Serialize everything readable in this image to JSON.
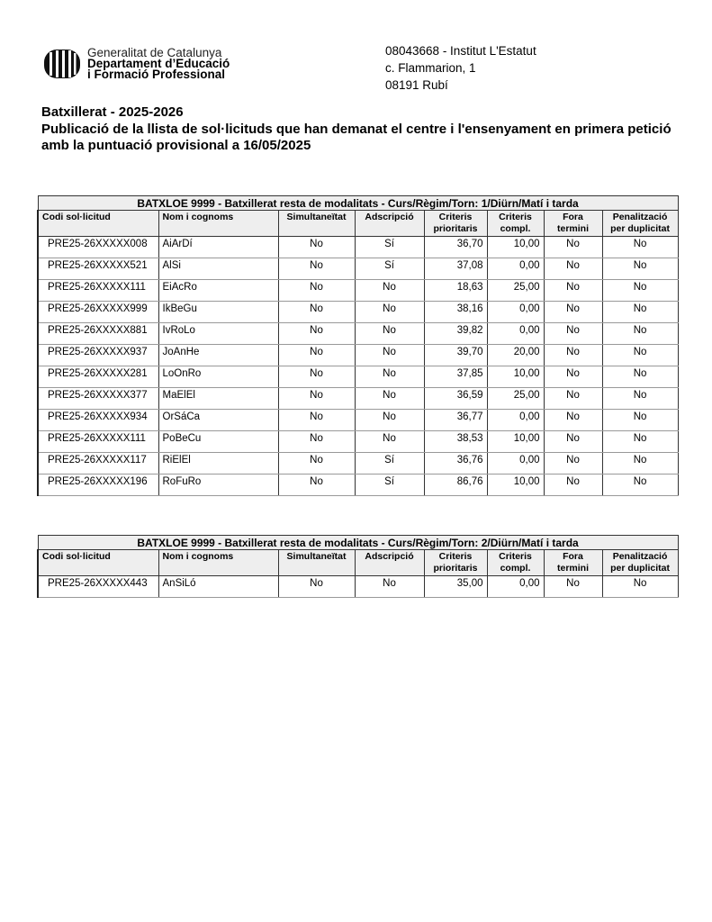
{
  "header": {
    "org_line1": "Generalitat de Catalunya",
    "org_line2": "Departament d’Educació",
    "org_line3": "i Formació Professional",
    "address": [
      "08043668 - Institut L'Estatut",
      "c. Flammarion, 1",
      "08191 Rubí"
    ]
  },
  "titles": {
    "line1": "Batxillerat - 2025-2026",
    "line2": "Publicació de la llista de sol·licituds que han demanat el centre i l'ensenyament en primera petició amb la puntuació provisional a 16/05/2025"
  },
  "columns": [
    "Codi sol·licitud",
    "Nom i cognoms",
    "Simultaneïtat",
    "Adscripció",
    "Criteris prioritaris",
    "Criteris compl.",
    "Fora termini",
    "Penalització per duplicitat"
  ],
  "tables": [
    {
      "caption": "BATXLOE 9999 - Batxillerat resta de modalitats    -  Curs/Règim/Torn:  1/Diürn/Matí i tarda",
      "rows": [
        [
          "PRE25-26XXXXX008",
          "AiArDí",
          "No",
          "Sí",
          "36,70",
          "10,00",
          "No",
          "No"
        ],
        [
          "PRE25-26XXXXX521",
          "AlSi",
          "No",
          "Sí",
          "37,08",
          "0,00",
          "No",
          "No"
        ],
        [
          "PRE25-26XXXXX111",
          "EiAcRo",
          "No",
          "No",
          "18,63",
          "25,00",
          "No",
          "No"
        ],
        [
          "PRE25-26XXXXX999",
          "IkBeGu",
          "No",
          "No",
          "38,16",
          "0,00",
          "No",
          "No"
        ],
        [
          "PRE25-26XXXXX881",
          "IvRoLo",
          "No",
          "No",
          "39,82",
          "0,00",
          "No",
          "No"
        ],
        [
          "PRE25-26XXXXX937",
          "JoAnHe",
          "No",
          "No",
          "39,70",
          "20,00",
          "No",
          "No"
        ],
        [
          "PRE25-26XXXXX281",
          "LoOnRo",
          "No",
          "No",
          "37,85",
          "10,00",
          "No",
          "No"
        ],
        [
          "PRE25-26XXXXX377",
          "MaElEl",
          "No",
          "No",
          "36,59",
          "25,00",
          "No",
          "No"
        ],
        [
          "PRE25-26XXXXX934",
          "OrSáCa",
          "No",
          "No",
          "36,77",
          "0,00",
          "No",
          "No"
        ],
        [
          "PRE25-26XXXXX111",
          "PoBeCu",
          "No",
          "No",
          "38,53",
          "10,00",
          "No",
          "No"
        ],
        [
          "PRE25-26XXXXX117",
          "RiElEl",
          "No",
          "Sí",
          "36,76",
          "0,00",
          "No",
          "No"
        ],
        [
          "PRE25-26XXXXX196",
          "RoFuRo",
          "No",
          "Sí",
          "86,76",
          "10,00",
          "No",
          "No"
        ]
      ]
    },
    {
      "caption": "BATXLOE 9999 - Batxillerat resta de modalitats    -  Curs/Règim/Torn:  2/Diürn/Matí i tarda",
      "rows": [
        [
          "PRE25-26XXXXX443",
          "AnSiLó",
          "No",
          "No",
          "35,00",
          "0,00",
          "No",
          "No"
        ]
      ]
    }
  ]
}
